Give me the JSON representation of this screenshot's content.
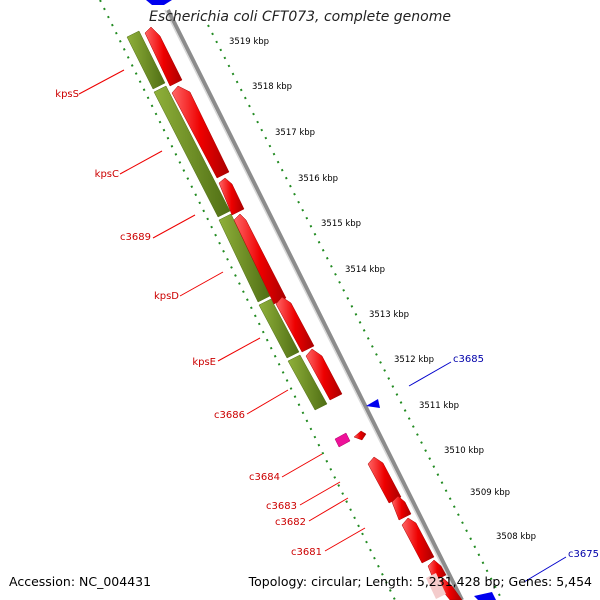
{
  "title": "Escherichia coli CFT073, complete genome",
  "accession": "Accession: NC_004431",
  "topology": "Topology: circular; Length: 5,231,428 bp; Genes: 5,454",
  "ticks": [
    "3519 kbp",
    "3518 kbp",
    "3517 kbp",
    "3516 kbp",
    "3515 kbp",
    "3514 kbp",
    "3513 kbp",
    "3512 kbp",
    "3511 kbp",
    "3510 kbp",
    "3509 kbp",
    "3508 kbp"
  ],
  "genes_left": [
    "kpsS",
    "kpsC",
    "c3689",
    "kpsD",
    "kpsE",
    "c3686",
    "c3684",
    "c3683",
    "c3682",
    "c3681"
  ],
  "genes_right": [
    "c3685",
    "c3675"
  ],
  "colors": {
    "backbone": "#9a9a9a",
    "gene_red": "#ee0000",
    "gene_green": "#6b8e23",
    "gene_blue": "#0000ee",
    "gene_magenta": "#ee1199",
    "tick_green": "#228b22",
    "label_red": "#cc0000",
    "label_blue": "#0000aa"
  }
}
